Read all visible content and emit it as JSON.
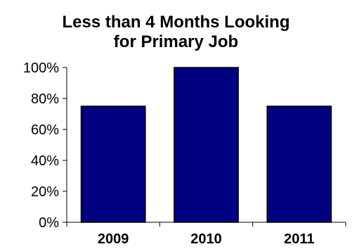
{
  "chart_data": {
    "type": "bar",
    "title_lines": [
      "Less than 4 Months Looking",
      "for Primary Job"
    ],
    "categories": [
      "2009",
      "2010",
      "2011"
    ],
    "values": [
      75,
      100,
      75
    ],
    "ylim": [
      0,
      100
    ],
    "yticks": [
      0,
      20,
      40,
      60,
      80,
      100
    ],
    "ytick_labels": [
      "0%",
      "20%",
      "40%",
      "60%",
      "80%",
      "100%"
    ],
    "xlabel": "",
    "ylabel": "",
    "grid": false,
    "legend": "none",
    "bar_color": "#000080"
  }
}
